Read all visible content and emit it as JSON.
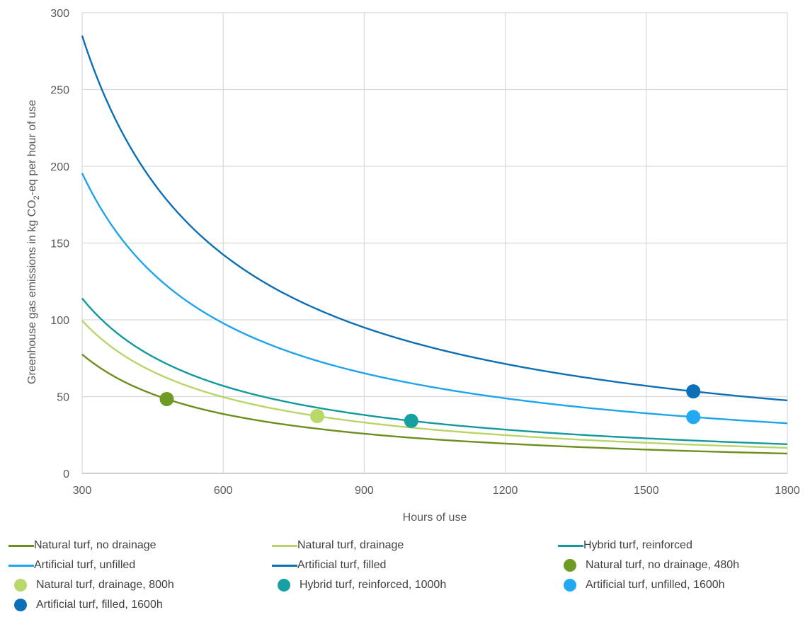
{
  "chart_data": {
    "type": "line",
    "xlabel": "Hours of use",
    "ylabel_parts": [
      "Greenhouse gas emissions in kg CO",
      "2",
      "-eq per hour of use"
    ],
    "xlim": [
      300,
      1800
    ],
    "ylim": [
      0,
      300
    ],
    "xticks": [
      "300",
      "600",
      "900",
      "1200",
      "1500",
      "1800"
    ],
    "yticks": [
      "0",
      "50",
      "100",
      "150",
      "200",
      "250",
      "300"
    ],
    "grid": true,
    "legend_position": "bottom",
    "x": [
      300,
      400,
      480,
      600,
      800,
      1000,
      1200,
      1400,
      1600,
      1800
    ],
    "series": [
      {
        "name": "Natural turf, no drainage",
        "color": "#6e8f1f",
        "values": [
          77.5,
          58.1,
          48.4,
          38.7,
          29.1,
          23.2,
          19.4,
          16.6,
          14.5,
          12.9
        ]
      },
      {
        "name": "Natural turf, drainage",
        "color": "#b8d46a",
        "values": [
          99.5,
          74.6,
          62.2,
          49.7,
          37.3,
          29.8,
          24.9,
          21.3,
          18.7,
          16.6
        ]
      },
      {
        "name": "Hybrid turf, reinforced",
        "color": "#13999b",
        "values": [
          114.0,
          85.5,
          71.3,
          57.0,
          42.8,
          34.2,
          28.5,
          24.4,
          21.4,
          19.0
        ]
      },
      {
        "name": "Artificial turf, unfilled",
        "color": "#1ea4ec",
        "values": [
          195.5,
          146.6,
          122.2,
          97.8,
          73.3,
          58.7,
          48.9,
          41.9,
          36.7,
          32.6
        ]
      },
      {
        "name": "Artificial turf, filled",
        "color": "#0c6fb5",
        "values": [
          285.0,
          213.8,
          178.1,
          142.5,
          106.9,
          85.5,
          71.3,
          61.1,
          53.4,
          47.5
        ]
      }
    ],
    "points": [
      {
        "name": "Natural turf, no drainage, 480h",
        "color": "#6e9b23",
        "x": 480,
        "y": 48.4
      },
      {
        "name": "Natural turf, drainage, 800h",
        "color": "#b9d86a",
        "x": 800,
        "y": 37.3
      },
      {
        "name": "Hybrid turf, reinforced, 1000h",
        "color": "#16a0a1",
        "x": 1000,
        "y": 34.2
      },
      {
        "name": "Artificial turf, unfilled, 1600h",
        "color": "#22a9f2",
        "x": 1600,
        "y": 36.7
      },
      {
        "name": "Artificial turf, filled, 1600h",
        "color": "#0c70b9",
        "x": 1600,
        "y": 53.4
      }
    ]
  }
}
